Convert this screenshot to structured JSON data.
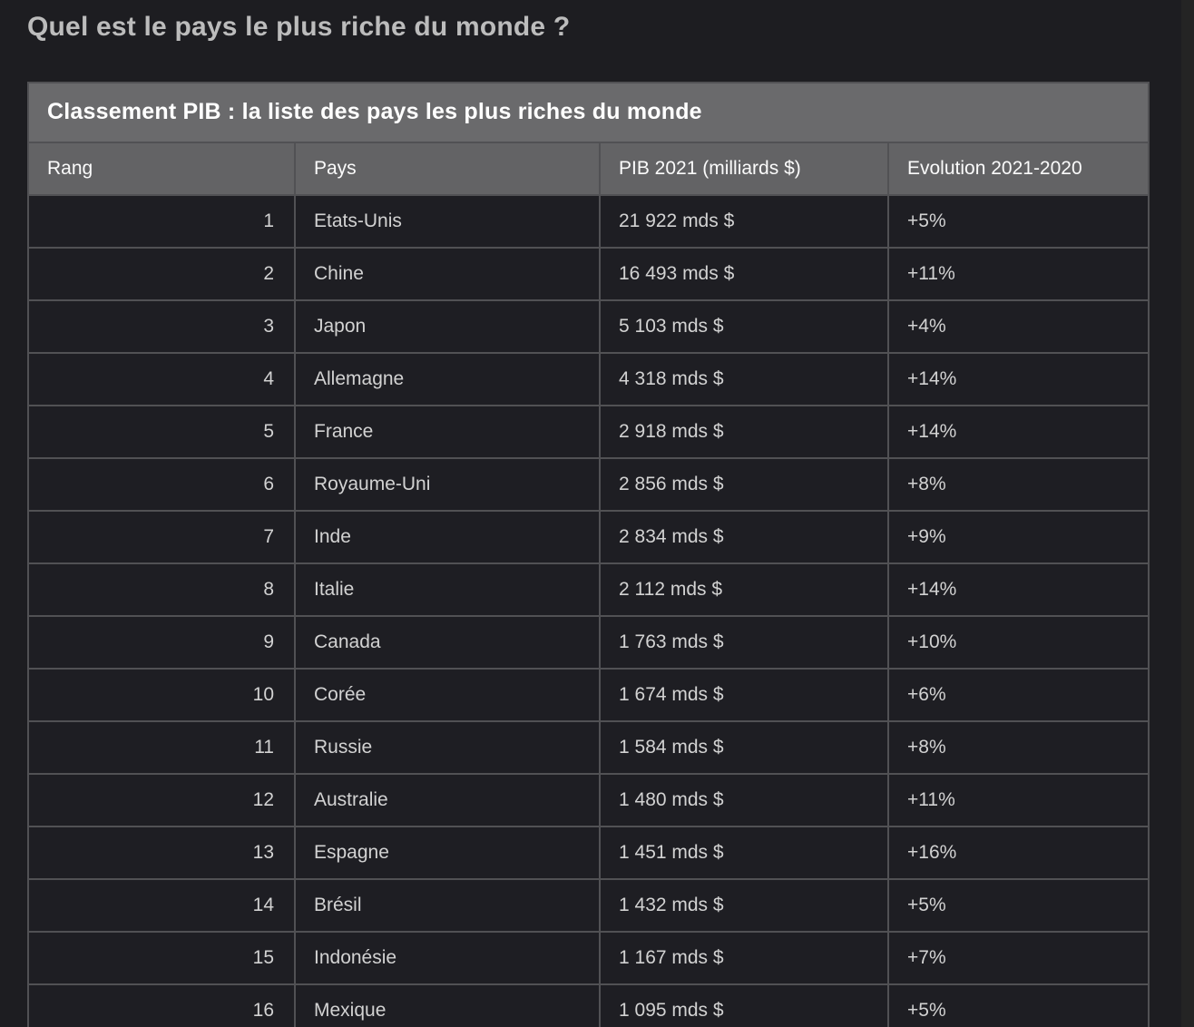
{
  "page": {
    "title": "Quel est le pays le plus riche du monde ?"
  },
  "table": {
    "caption": "Classement PIB : la liste des pays les plus riches du monde",
    "columns": [
      "Rang",
      "Pays",
      "PIB 2021 (milliards $)",
      "Evolution 2021-2020"
    ],
    "rows": [
      {
        "rang": "1",
        "pays": "Etats-Unis",
        "pib": "21 922 mds $",
        "evolution": "+5%"
      },
      {
        "rang": "2",
        "pays": "Chine",
        "pib": "16 493 mds $",
        "evolution": "+11%"
      },
      {
        "rang": "3",
        "pays": "Japon",
        "pib": "5 103 mds $",
        "evolution": "+4%"
      },
      {
        "rang": "4",
        "pays": "Allemagne",
        "pib": "4 318 mds $",
        "evolution": "+14%"
      },
      {
        "rang": "5",
        "pays": "France",
        "pib": "2 918 mds $",
        "evolution": "+14%"
      },
      {
        "rang": "6",
        "pays": "Royaume-Uni",
        "pib": "2 856 mds $",
        "evolution": "+8%"
      },
      {
        "rang": "7",
        "pays": "Inde",
        "pib": "2 834 mds $",
        "evolution": "+9%"
      },
      {
        "rang": "8",
        "pays": "Italie",
        "pib": "2 112 mds $",
        "evolution": "+14%"
      },
      {
        "rang": "9",
        "pays": "Canada",
        "pib": "1 763 mds $",
        "evolution": "+10%"
      },
      {
        "rang": "10",
        "pays": "Corée",
        "pib": "1 674 mds $",
        "evolution": "+6%"
      },
      {
        "rang": "11",
        "pays": "Russie",
        "pib": "1 584 mds $",
        "evolution": "+8%"
      },
      {
        "rang": "12",
        "pays": "Australie",
        "pib": "1 480 mds $",
        "evolution": "+11%"
      },
      {
        "rang": "13",
        "pays": "Espagne",
        "pib": "1 451 mds $",
        "evolution": "+16%"
      },
      {
        "rang": "14",
        "pays": "Brésil",
        "pib": "1 432 mds $",
        "evolution": "+5%"
      },
      {
        "rang": "15",
        "pays": "Indonésie",
        "pib": "1 167 mds $",
        "evolution": "+7%"
      },
      {
        "rang": "16",
        "pays": "Mexique",
        "pib": "1 095 mds $",
        "evolution": "+5%"
      }
    ]
  },
  "colors": {
    "page_background": "#1d1d21",
    "caption_background": "#6a6a6c",
    "header_background": "#636365",
    "cell_background": "#1e1e23",
    "border": "#515154",
    "title_text": "#bcbcbc",
    "body_text": "#d2d2d2",
    "header_text": "#fbfbfb",
    "scrollbar_track": "#242424"
  }
}
